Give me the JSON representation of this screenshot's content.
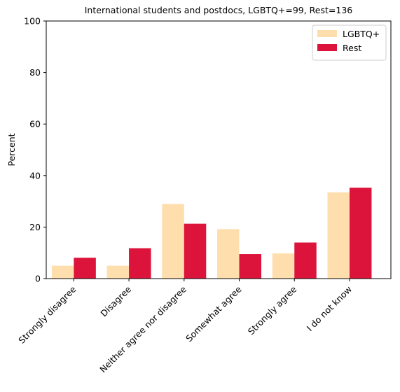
{
  "chart_data": {
    "type": "bar",
    "title": "International students and postdocs, LGBTQ+=99, Rest=136",
    "xlabel": "",
    "ylabel": "Percent",
    "ylim": [
      0,
      100
    ],
    "yticks": [
      0,
      20,
      40,
      60,
      80,
      100
    ],
    "grid": false,
    "legend_position": "top-right",
    "categories": [
      "Strongly disagree",
      "Disagree",
      "Neither agree nor disagree",
      "Somewhat agree",
      "Strongly agree",
      "I do not know"
    ],
    "series": [
      {
        "name": "LGBTQ+",
        "color": "#ffdead",
        "values": [
          5.0,
          5.0,
          29.0,
          19.2,
          9.8,
          33.5
        ]
      },
      {
        "name": "Rest",
        "color": "#dc143c",
        "values": [
          8.1,
          11.8,
          21.3,
          9.5,
          14.0,
          35.3
        ]
      }
    ]
  }
}
